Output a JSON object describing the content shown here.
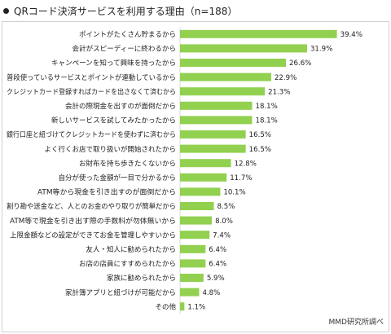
{
  "title": "QRコード決済サービスを利用する理由（n=188）",
  "source": "MMD研究所調べ",
  "colors": {
    "bar": "#92d050",
    "gridline": "#d9d9d9",
    "text": "#222222"
  },
  "chart_data": {
    "type": "bar",
    "orientation": "horizontal",
    "title": "QRコード決済サービスを利用する理由（n=188）",
    "xlabel": "",
    "ylabel": "",
    "unit": "%",
    "xlim": [
      0,
      45
    ],
    "grid": false,
    "legend": "none",
    "categories": [
      "ポイントがたくさん貯まるから",
      "会計がスピーディーに終わるから",
      "キャンペーンを知って興味を持ったから",
      "普段使っているサービスとポイントが連動しているから",
      "クレジットカード登録すればカードを出さなくて済むから",
      "会計の際現金を出すのが面倒だから",
      "新しいサービスを試してみたかったから",
      "銀行口座と紐づけてクレジットカードを使わずに済むから",
      "よく行くお店で取り扱いが開始されたから",
      "お財布を持ち歩きたくないから",
      "自分が使った金額が一目で分かるから",
      "ATM等から現金を引き出すのが面倒だから",
      "割り勘や送金など、人とのお金のやり取りが簡単だから",
      "ATM等で現金を引き出す際の手数料が勿体無いから",
      "上限金額などの設定ができてお金を管理しやすいから",
      "友人・知人に勧められたから",
      "お店の店員にすすめられたから",
      "家族に勧められたから",
      "家計簿アプリと紐づけが可能だから",
      "その他"
    ],
    "values": [
      39.4,
      31.9,
      26.6,
      22.9,
      21.3,
      18.1,
      18.1,
      16.5,
      16.5,
      12.8,
      11.7,
      10.1,
      8.5,
      8.0,
      7.4,
      6.4,
      6.4,
      5.9,
      4.8,
      1.1
    ],
    "value_labels": [
      "39.4%",
      "31.9%",
      "26.6%",
      "22.9%",
      "21.3%",
      "18.1%",
      "18.1%",
      "16.5%",
      "16.5%",
      "12.8%",
      "11.7%",
      "10.1%",
      "8.5%",
      "8.0%",
      "7.4%",
      "6.4%",
      "6.4%",
      "5.9%",
      "4.8%",
      "1.1%"
    ]
  }
}
